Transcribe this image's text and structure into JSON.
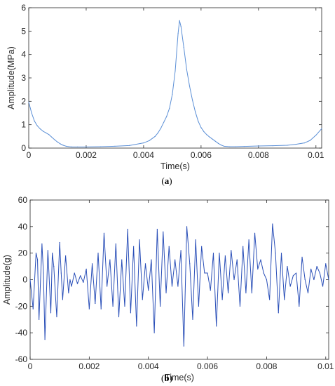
{
  "chart_data": [
    {
      "panel_label": "(a)",
      "panel_letter": "a",
      "type": "line",
      "xlabel": "Time(s)",
      "ylabel": "Amplitude(MPa)",
      "xlim": [
        0,
        0.0102
      ],
      "ylim": [
        0,
        6
      ],
      "xticks": [
        0,
        0.002,
        0.004,
        0.006,
        0.008,
        0.01
      ],
      "xtick_labels": [
        "0",
        "0.002",
        "0.004",
        "0.006",
        "0.008",
        "0.01"
      ],
      "yticks": [
        0,
        1,
        2,
        3,
        4,
        5,
        6
      ],
      "ytick_labels": [
        "0",
        "1",
        "2",
        "3",
        "4",
        "5",
        "6"
      ],
      "grid": false,
      "line_color": "#5b8fd6",
      "series": [
        {
          "x": [
            0,
            0.0001,
            0.0002,
            0.0003,
            0.0004,
            0.0005,
            0.0006,
            0.0007,
            0.0008,
            0.0009,
            0.001,
            0.0011,
            0.0012,
            0.0013,
            0.0014,
            0.0015,
            0.0017,
            0.002,
            0.0025,
            0.003,
            0.0035,
            0.004,
            0.0042,
            0.0044,
            0.0045,
            0.0046,
            0.0047,
            0.0048,
            0.0049,
            0.005,
            0.0051,
            0.0052,
            0.00525,
            0.0053,
            0.0054,
            0.0055,
            0.0056,
            0.0057,
            0.0058,
            0.0059,
            0.006,
            0.0061,
            0.0062,
            0.0063,
            0.0064,
            0.0065,
            0.0066,
            0.0067,
            0.0068,
            0.007,
            0.0072,
            0.0075,
            0.008,
            0.0085,
            0.009,
            0.0093,
            0.0096,
            0.0098,
            0.01,
            0.0102
          ],
          "y": [
            1.97,
            1.5,
            1.15,
            0.95,
            0.82,
            0.72,
            0.65,
            0.58,
            0.47,
            0.36,
            0.26,
            0.18,
            0.12,
            0.08,
            0.06,
            0.05,
            0.05,
            0.05,
            0.06,
            0.08,
            0.11,
            0.22,
            0.32,
            0.5,
            0.65,
            0.85,
            1.1,
            1.35,
            1.7,
            2.3,
            3.3,
            4.9,
            5.45,
            5.2,
            4.3,
            3.35,
            2.65,
            2.05,
            1.55,
            1.15,
            0.88,
            0.7,
            0.57,
            0.47,
            0.38,
            0.29,
            0.2,
            0.13,
            0.08,
            0.06,
            0.06,
            0.07,
            0.09,
            0.1,
            0.12,
            0.16,
            0.22,
            0.33,
            0.55,
            0.83
          ]
        }
      ]
    },
    {
      "panel_label": "(b)",
      "panel_letter": "b",
      "type": "line",
      "xlabel": "Time(s)",
      "ylabel": "Amplitude(g)",
      "xlim": [
        0,
        0.0101
      ],
      "ylim": [
        -60,
        60
      ],
      "xticks": [
        0,
        0.002,
        0.004,
        0.006,
        0.008,
        0.01
      ],
      "xtick_labels": [
        "0",
        "0.002",
        "0.004",
        "0.006",
        "0.008",
        "0.01"
      ],
      "yticks": [
        -60,
        -40,
        -20,
        0,
        20,
        40,
        60
      ],
      "ytick_labels": [
        "-60",
        "-40",
        "-20",
        "0",
        "20",
        "40",
        "60"
      ],
      "grid": false,
      "line_color": "#2a4fb8",
      "series": [
        {
          "x": [
            0,
            0.0001,
            0.0002,
            0.00025,
            0.0003,
            0.0004,
            0.00045,
            0.0005,
            0.0006,
            0.0007,
            0.00075,
            0.0008,
            0.0009,
            0.001,
            0.00105,
            0.0011,
            0.0012,
            0.0013,
            0.00135,
            0.0014,
            0.0015,
            0.0016,
            0.0017,
            0.0018,
            0.0019,
            0.002,
            0.0021,
            0.0022,
            0.0023,
            0.0024,
            0.0025,
            0.0026,
            0.0027,
            0.0028,
            0.0029,
            0.003,
            0.0031,
            0.0032,
            0.0033,
            0.0034,
            0.0035,
            0.0036,
            0.0037,
            0.0038,
            0.0039,
            0.004,
            0.0041,
            0.0042,
            0.0043,
            0.0044,
            0.0045,
            0.0046,
            0.0047,
            0.0048,
            0.0049,
            0.005,
            0.0051,
            0.0052,
            0.0053,
            0.0054,
            0.0055,
            0.0056,
            0.0057,
            0.0058,
            0.0059,
            0.006,
            0.0061,
            0.0062,
            0.0063,
            0.0064,
            0.0065,
            0.0066,
            0.0067,
            0.0068,
            0.0069,
            0.007,
            0.0071,
            0.0072,
            0.0073,
            0.0074,
            0.0075,
            0.0076,
            0.0077,
            0.0078,
            0.0079,
            0.008,
            0.0081,
            0.0082,
            0.0083,
            0.0084,
            0.0085,
            0.0086,
            0.0087,
            0.0088,
            0.0089,
            0.009,
            0.0091,
            0.0092,
            0.0093,
            0.0094,
            0.0095,
            0.0096,
            0.0097,
            0.0098,
            0.0099,
            0.01,
            0.0101
          ],
          "y": [
            0,
            -22,
            20,
            15,
            -30,
            27,
            5,
            -45,
            22,
            -25,
            20,
            10,
            -28,
            28,
            5,
            -15,
            18,
            -10,
            0,
            -5,
            5,
            -3,
            3,
            -2,
            8,
            -22,
            12,
            -18,
            20,
            -22,
            35,
            -5,
            15,
            -20,
            27,
            -28,
            15,
            -20,
            38,
            -25,
            25,
            -35,
            30,
            -15,
            12,
            -8,
            15,
            -40,
            38,
            -20,
            36,
            -10,
            25,
            -5,
            15,
            -5,
            22,
            -50,
            40,
            12,
            -30,
            30,
            -20,
            25,
            5,
            5,
            -8,
            20,
            -35,
            20,
            -15,
            18,
            -10,
            22,
            0,
            15,
            -20,
            25,
            -10,
            30,
            -10,
            35,
            8,
            15,
            5,
            0,
            -15,
            42,
            20,
            -25,
            20,
            -15,
            10,
            -5,
            3,
            5,
            -20,
            17,
            0,
            -10,
            8,
            0,
            10,
            5,
            -5,
            12,
            0
          ]
        }
      ]
    }
  ]
}
